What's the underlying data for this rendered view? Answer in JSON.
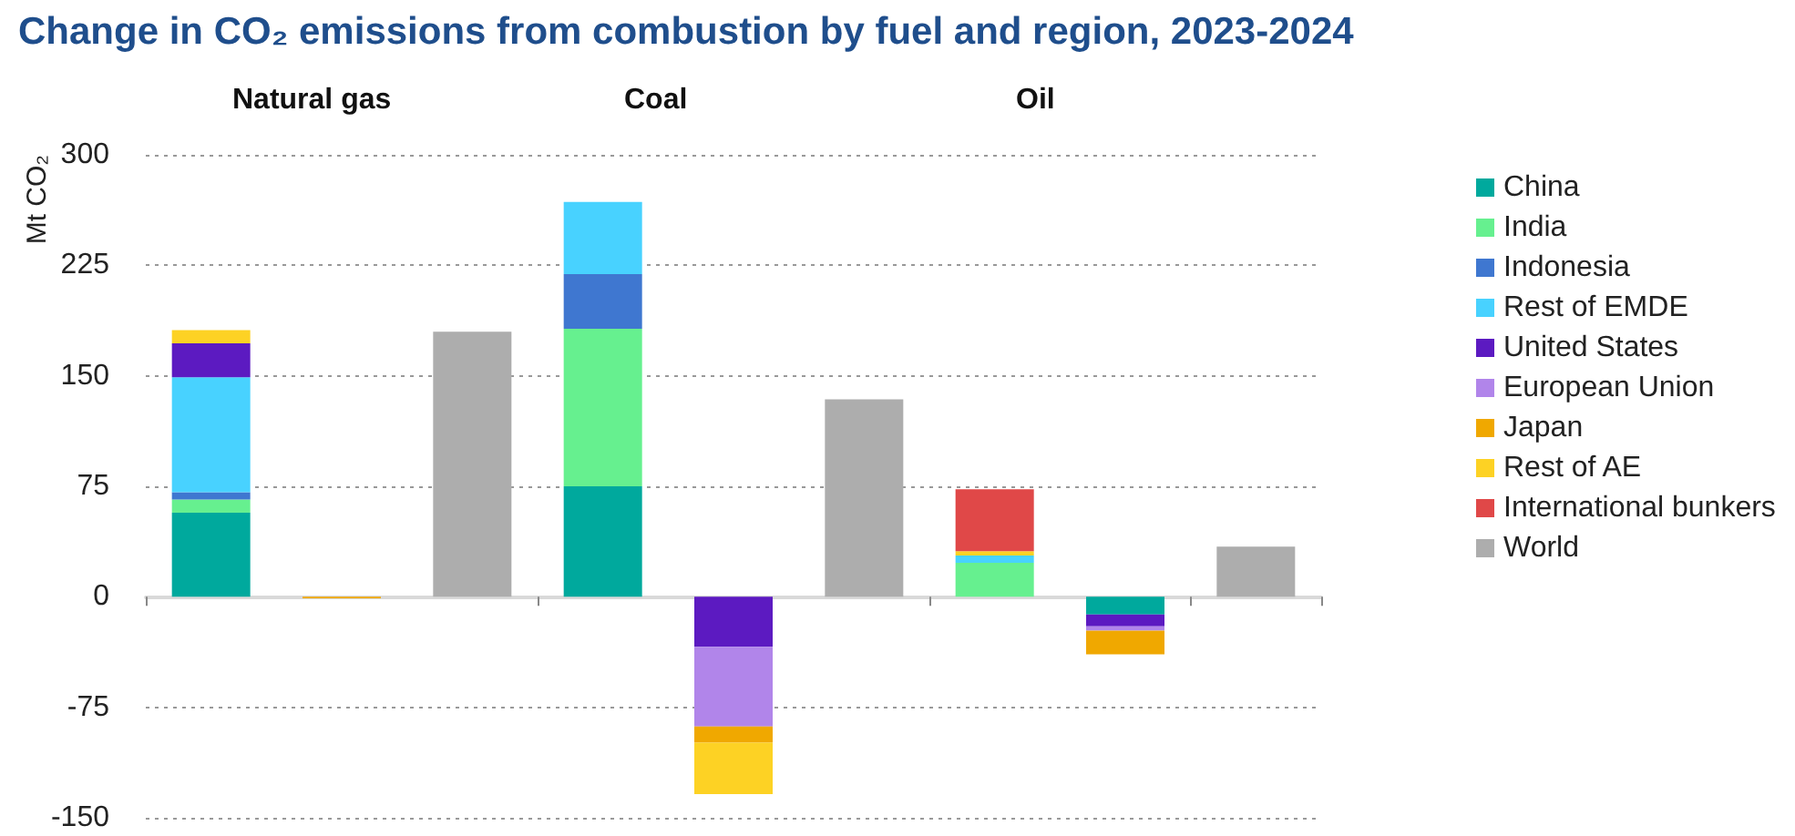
{
  "chart_data": {
    "type": "bar",
    "title": "Change in CO₂ emissions from combustion by fuel and region, 2023-2024",
    "ylabel": "Mt CO₂",
    "annotations": [
      "Natural gas",
      "Coal",
      "Oil"
    ],
    "categories": [
      null,
      null,
      null,
      null,
      null,
      null,
      null,
      null,
      null
    ],
    "stacked": true,
    "grid": "y",
    "legend": "right",
    "ylim": [
      -150,
      300
    ],
    "yticks": [
      -150,
      -75,
      0,
      75,
      150,
      225,
      300
    ],
    "series": [
      {
        "name": "China",
        "color": "#00a99d",
        "values": [
          57,
          null,
          null,
          75,
          null,
          null,
          null,
          -12,
          null
        ]
      },
      {
        "name": "India",
        "color": "#66f08f",
        "values": [
          9,
          null,
          null,
          107,
          null,
          null,
          23,
          null,
          null
        ]
      },
      {
        "name": "Indonesia",
        "color": "#3f77d0",
        "values": [
          5,
          null,
          null,
          37,
          null,
          null,
          null,
          null,
          null
        ]
      },
      {
        "name": "Rest of EMDE",
        "color": "#48d2ff",
        "values": [
          78,
          null,
          null,
          49,
          null,
          null,
          5,
          null,
          null
        ]
      },
      {
        "name": "United States",
        "color": "#5c1ac1",
        "values": [
          23,
          null,
          null,
          null,
          -34,
          null,
          null,
          -8,
          null
        ]
      },
      {
        "name": "European Union",
        "color": "#b185ea",
        "values": [
          null,
          null,
          null,
          null,
          -54,
          null,
          null,
          -3,
          null
        ]
      },
      {
        "name": "Japan",
        "color": "#f0a800",
        "values": [
          null,
          -1,
          null,
          null,
          -11,
          null,
          null,
          -16,
          null
        ]
      },
      {
        "name": "Rest of AE",
        "color": "#fdd224",
        "values": [
          9,
          null,
          null,
          null,
          -35,
          null,
          3,
          null,
          null
        ]
      },
      {
        "name": "International bunkers",
        "color": "#e04848",
        "values": [
          null,
          null,
          null,
          null,
          null,
          null,
          42,
          null,
          null
        ]
      },
      {
        "name": "World",
        "color": "#adadad",
        "values": [
          null,
          null,
          180,
          null,
          null,
          134,
          null,
          null,
          34
        ]
      }
    ]
  }
}
